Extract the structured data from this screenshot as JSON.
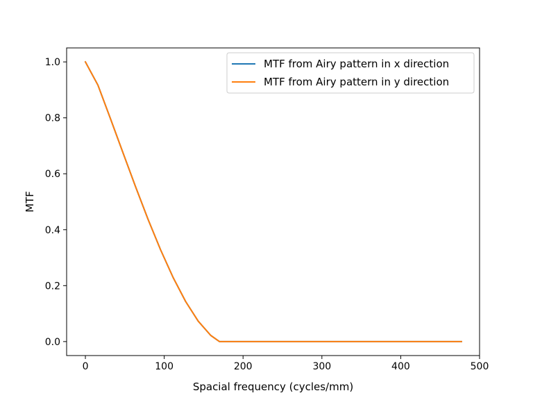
{
  "chart_data": {
    "type": "line",
    "title": "",
    "xlabel": "Spacial frequency (cycles/mm)",
    "ylabel": "MTF",
    "xlim": [
      -23.8,
      500
    ],
    "ylim": [
      -0.05,
      1.05
    ],
    "xticks": [
      0,
      100,
      200,
      300,
      400,
      500
    ],
    "yticks": [
      0.0,
      0.2,
      0.4,
      0.6,
      0.8,
      1.0
    ],
    "xtick_labels": [
      "0",
      "100",
      "200",
      "300",
      "400",
      "500"
    ],
    "ytick_labels": [
      "0.0",
      "0.2",
      "0.4",
      "0.6",
      "0.8",
      "1.0"
    ],
    "grid": false,
    "legend_position": "upper-right",
    "series": [
      {
        "name": "MTF from Airy pattern in x direction",
        "color": "#1f77b4",
        "x": [
          0,
          15.9,
          31.8,
          47.7,
          63.6,
          79.5,
          95.4,
          111.3,
          127.2,
          143.1,
          159.0,
          170,
          200,
          250,
          300,
          350,
          400,
          450,
          477
        ],
        "y": [
          1.0,
          0.917,
          0.797,
          0.675,
          0.554,
          0.437,
          0.328,
          0.229,
          0.143,
          0.073,
          0.022,
          0.0,
          0.0,
          0.0,
          0.0,
          0.0,
          0.0,
          0.0,
          0.0
        ]
      },
      {
        "name": "MTF from Airy pattern in y direction",
        "color": "#ff7f0e",
        "x": [
          0,
          15.9,
          31.8,
          47.7,
          63.6,
          79.5,
          95.4,
          111.3,
          127.2,
          143.1,
          159.0,
          170,
          200,
          250,
          300,
          350,
          400,
          450,
          477
        ],
        "y": [
          1.0,
          0.917,
          0.797,
          0.675,
          0.554,
          0.437,
          0.328,
          0.229,
          0.143,
          0.073,
          0.022,
          0.0,
          0.0,
          0.0,
          0.0,
          0.0,
          0.0,
          0.0,
          0.0
        ]
      }
    ]
  }
}
